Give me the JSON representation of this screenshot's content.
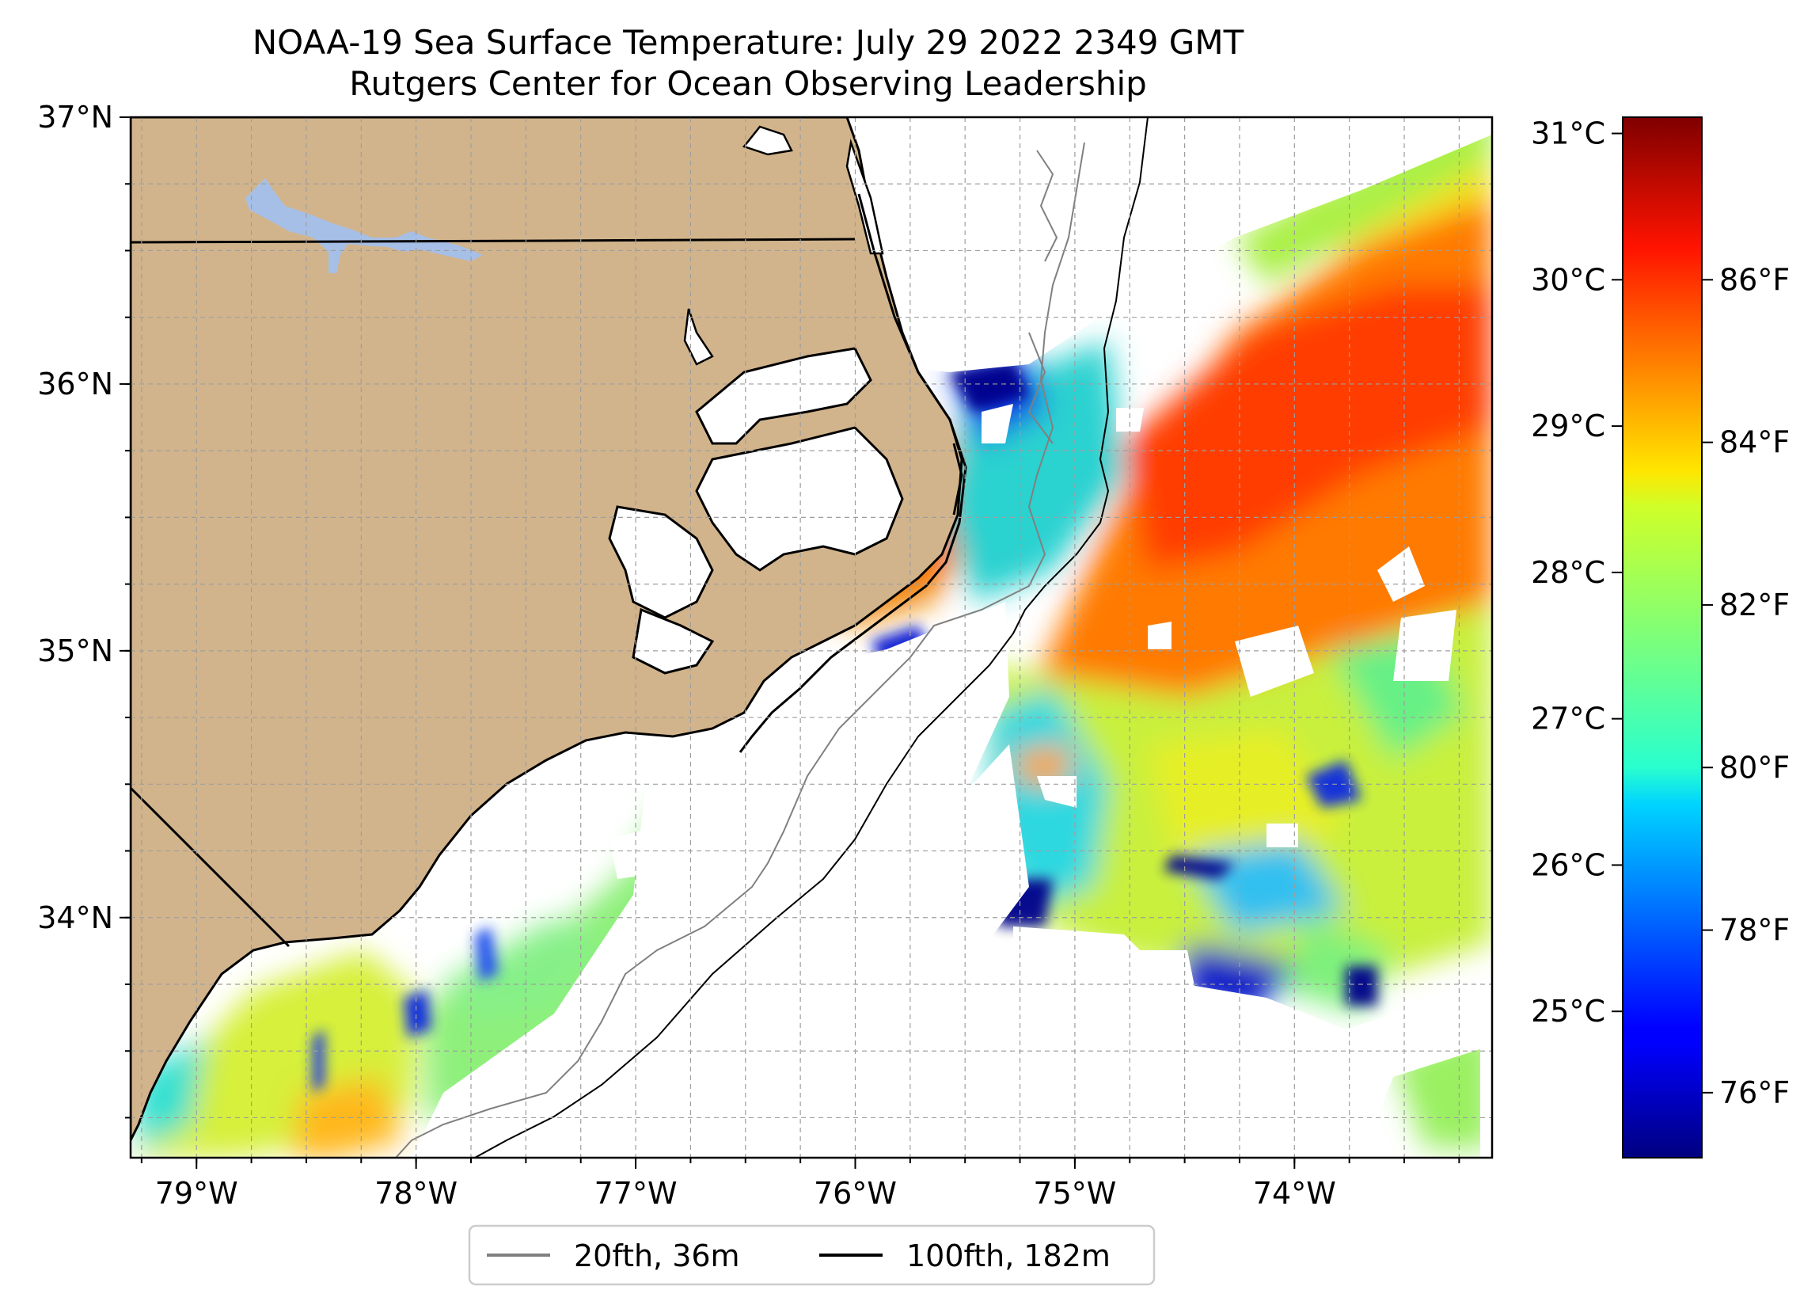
{
  "title": {
    "line1": "NOAA-19 Sea Surface Temperature: July 29 2022 2349 GMT",
    "line2": "Rutgers Center for Ocean Observing Leadership"
  },
  "map": {
    "lon_range": [
      -79.3,
      -73.1
    ],
    "lat_range": [
      33.1,
      37.0
    ],
    "x_ticks": [
      {
        "value": -79,
        "label": "79°W"
      },
      {
        "value": -78,
        "label": "78°W"
      },
      {
        "value": -77,
        "label": "77°W"
      },
      {
        "value": -76,
        "label": "76°W"
      },
      {
        "value": -75,
        "label": "75°W"
      },
      {
        "value": -74,
        "label": "74°W"
      }
    ],
    "y_ticks": [
      {
        "value": 37,
        "label": "37°N"
      },
      {
        "value": 36,
        "label": "36°N"
      },
      {
        "value": 35,
        "label": "35°N"
      },
      {
        "value": 34,
        "label": "34°N"
      }
    ],
    "grid": true,
    "land_color": "#d2b48c",
    "lake_color": "#a6bfe6"
  },
  "colorbar": {
    "colormap": "jet",
    "f_range": [
      75.2,
      88.0
    ],
    "celsius_ticks": [
      {
        "value": 31,
        "label": "31°C"
      },
      {
        "value": 30,
        "label": "30°C"
      },
      {
        "value": 29,
        "label": "29°C"
      },
      {
        "value": 28,
        "label": "28°C"
      },
      {
        "value": 27,
        "label": "27°C"
      },
      {
        "value": 26,
        "label": "26°C"
      },
      {
        "value": 25,
        "label": "25°C"
      }
    ],
    "fahrenheit_ticks": [
      {
        "value": 86,
        "label": "86°F"
      },
      {
        "value": 84,
        "label": "84°F"
      },
      {
        "value": 82,
        "label": "82°F"
      },
      {
        "value": 80,
        "label": "80°F"
      },
      {
        "value": 78,
        "label": "78°F"
      },
      {
        "value": 76,
        "label": "76°F"
      }
    ]
  },
  "legend": {
    "placement": "bottom-center",
    "entries": [
      {
        "label": "20fth, 36m",
        "color": "#808080"
      },
      {
        "label": "100fth, 182m",
        "color": "#000000"
      }
    ]
  }
}
